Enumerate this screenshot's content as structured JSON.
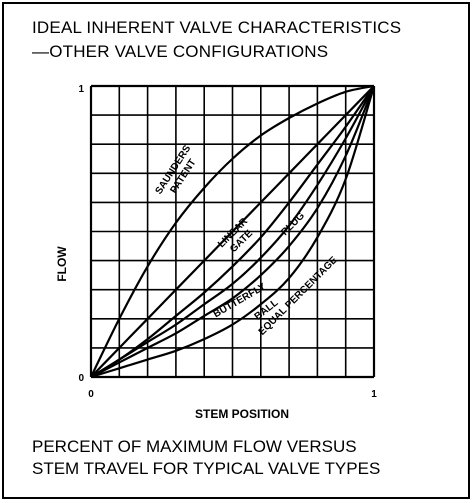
{
  "page": {
    "title_lines": [
      "IDEAL INHERENT VALVE CHARACTERISTICS",
      "—OTHER VALVE CONFIGURATIONS"
    ],
    "caption_lines": [
      "PERCENT OF MAXIMUM FLOW VERSUS",
      "STEM TRAVEL FOR TYPICAL VALVE TYPES"
    ]
  },
  "chart_data": {
    "type": "line",
    "title": "IDEAL INHERENT VALVE CHARACTERISTICS —OTHER VALVE CONFIGURATIONS",
    "xlabel": "STEM POSITION",
    "ylabel": "FLOW",
    "xlim": [
      0,
      1
    ],
    "ylim": [
      0,
      1
    ],
    "x_ticks": [
      {
        "value": 0,
        "label": "0"
      },
      {
        "value": 1,
        "label": "1"
      }
    ],
    "y_ticks": [
      {
        "value": 0,
        "label": "0"
      },
      {
        "value": 1,
        "label": "1"
      }
    ],
    "grid": true,
    "grid_divisions": 10,
    "series": [
      {
        "name": "SAUNDERS PATENT",
        "x": [
          0,
          0.1,
          0.2,
          0.3,
          0.4,
          0.5,
          0.6,
          0.7,
          0.8,
          0.9,
          1.0
        ],
        "y": [
          0,
          0.2,
          0.38,
          0.53,
          0.65,
          0.75,
          0.83,
          0.89,
          0.94,
          0.98,
          1.0
        ]
      },
      {
        "name": "LINEAR GATE",
        "x": [
          0,
          0.1,
          0.2,
          0.3,
          0.4,
          0.5,
          0.6,
          0.7,
          0.8,
          0.9,
          1.0
        ],
        "y": [
          0,
          0.1,
          0.2,
          0.3,
          0.4,
          0.5,
          0.6,
          0.7,
          0.8,
          0.9,
          1.0
        ]
      },
      {
        "name": "PLUG",
        "x": [
          0,
          0.1,
          0.2,
          0.3,
          0.4,
          0.5,
          0.6,
          0.7,
          0.8,
          0.9,
          1.0
        ],
        "y": [
          0,
          0.06,
          0.13,
          0.21,
          0.29,
          0.38,
          0.48,
          0.6,
          0.73,
          0.86,
          1.0
        ]
      },
      {
        "name": "BUTTERFLY",
        "x": [
          0,
          0.1,
          0.2,
          0.3,
          0.4,
          0.5,
          0.6,
          0.7,
          0.8,
          0.9,
          1.0
        ],
        "y": [
          0,
          0.06,
          0.12,
          0.18,
          0.25,
          0.32,
          0.41,
          0.52,
          0.66,
          0.82,
          1.0
        ]
      },
      {
        "name": "BALL",
        "x": [
          0,
          0.1,
          0.2,
          0.3,
          0.4,
          0.5,
          0.6,
          0.7,
          0.8,
          0.9,
          1.0
        ],
        "y": [
          0,
          0.05,
          0.1,
          0.15,
          0.21,
          0.27,
          0.35,
          0.45,
          0.58,
          0.76,
          1.0
        ]
      },
      {
        "name": "EQUAL PERCENTAGE",
        "x": [
          0,
          0.1,
          0.2,
          0.3,
          0.4,
          0.5,
          0.6,
          0.7,
          0.8,
          0.9,
          1.0
        ],
        "y": [
          0,
          0.03,
          0.06,
          0.09,
          0.13,
          0.18,
          0.25,
          0.34,
          0.48,
          0.68,
          1.0
        ]
      }
    ]
  }
}
